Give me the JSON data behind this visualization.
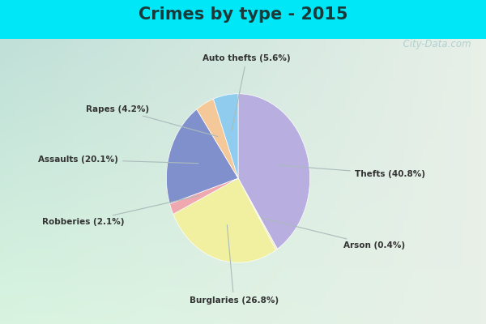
{
  "title": "Crimes by type - 2015",
  "slices": [
    {
      "label": "Thefts (40.8%)",
      "value": 40.8,
      "color": "#b8aee0"
    },
    {
      "label": "Arson (0.4%)",
      "value": 0.4,
      "color": "#eeeebb"
    },
    {
      "label": "Burglaries (26.8%)",
      "value": 26.8,
      "color": "#f0f0a0"
    },
    {
      "label": "Robberies (2.1%)",
      "value": 2.1,
      "color": "#f0a8b0"
    },
    {
      "label": "Assaults (20.1%)",
      "value": 20.1,
      "color": "#8090cc"
    },
    {
      "label": "Rapes (4.2%)",
      "value": 4.2,
      "color": "#f4c898"
    },
    {
      "label": "Auto thefts (5.6%)",
      "value": 5.6,
      "color": "#90ccee"
    }
  ],
  "label_color": "#333333",
  "title_fontsize": 15,
  "bg_cyan": "#00e8f8",
  "bg_inner_top": "#c8e8e0",
  "bg_inner_bottom": "#d8f0d8",
  "watermark": "  City-Data.com",
  "startangle": 90,
  "label_positions": {
    "Thefts (40.8%)": [
      1.38,
      0.05,
      "left"
    ],
    "Arson (0.4%)": [
      1.25,
      -0.8,
      "left"
    ],
    "Burglaries (26.8%)": [
      -0.05,
      -1.45,
      "center"
    ],
    "Robberies (2.1%)": [
      -1.35,
      -0.52,
      "right"
    ],
    "Assaults (20.1%)": [
      -1.42,
      0.22,
      "right"
    ],
    "Rapes (4.2%)": [
      -1.05,
      0.82,
      "right"
    ],
    "Auto thefts (5.6%)": [
      0.1,
      1.42,
      "center"
    ]
  }
}
